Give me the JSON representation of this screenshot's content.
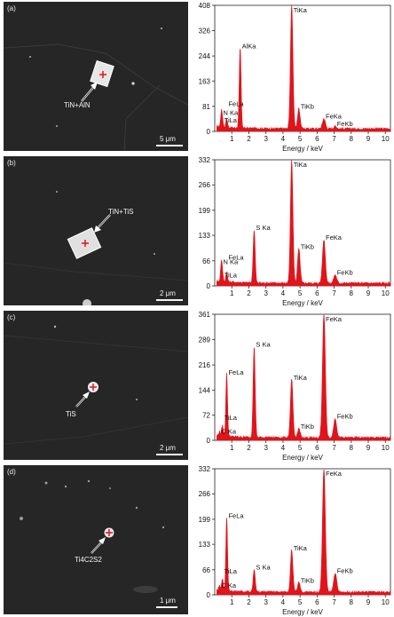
{
  "colors": {
    "spectrum": "#e0141b",
    "marker": "#e0141b",
    "sem_bg": "#262626"
  },
  "panels": [
    {
      "label": "(a)",
      "feature_label": "TiN+AlN",
      "scale_bar": "5 μm"
    },
    {
      "label": "(b)",
      "feature_label": "TiN+TiS",
      "scale_bar": "2 μm"
    },
    {
      "label": "(c)",
      "feature_label": "TiS",
      "scale_bar": "2 μm"
    },
    {
      "label": "(d)",
      "feature_label": "Ti4C2S2",
      "scale_bar": "1 μm"
    }
  ],
  "chart_data": [
    {
      "type": "line",
      "xlabel": "Energy / keV",
      "xlim": [
        0,
        10.3
      ],
      "x_ticks": [
        1,
        2,
        3,
        4,
        5,
        6,
        7,
        8,
        9,
        10
      ],
      "y_ticks": [
        0,
        81,
        163,
        244,
        326,
        408
      ],
      "ylim": [
        0,
        408
      ],
      "peaks": [
        {
          "label": "TiLa",
          "x": 0.45,
          "y": 20
        },
        {
          "label": "N Ka",
          "x": 0.39,
          "y": 45
        },
        {
          "label": "FeLa",
          "x": 0.7,
          "y": 28
        },
        {
          "label": "AlKa",
          "x": 1.49,
          "y": 260
        },
        {
          "label": "TiKa",
          "x": 4.51,
          "y": 400
        },
        {
          "label": "TiKb",
          "x": 4.93,
          "y": 65
        },
        {
          "label": "FeKa",
          "x": 6.4,
          "y": 33
        },
        {
          "label": "FeKb",
          "x": 7.06,
          "y": 8
        }
      ]
    },
    {
      "type": "line",
      "xlabel": "Energy / keV",
      "xlim": [
        0,
        10.3
      ],
      "x_ticks": [
        1,
        2,
        3,
        4,
        5,
        6,
        7,
        8,
        9,
        10
      ],
      "y_ticks": [
        0,
        66,
        133,
        199,
        266,
        332
      ],
      "ylim": [
        0,
        332
      ],
      "peaks": [
        {
          "label": "TiLa",
          "x": 0.45,
          "y": 15
        },
        {
          "label": "N Ka",
          "x": 0.39,
          "y": 50
        },
        {
          "label": "FeLa",
          "x": 0.7,
          "y": 25
        },
        {
          "label": "S Ka",
          "x": 2.31,
          "y": 140
        },
        {
          "label": "TiKa",
          "x": 4.51,
          "y": 325
        },
        {
          "label": "TiKb",
          "x": 4.93,
          "y": 90
        },
        {
          "label": "FeKa",
          "x": 6.4,
          "y": 115
        },
        {
          "label": "FeKb",
          "x": 7.06,
          "y": 22
        }
      ]
    },
    {
      "type": "line",
      "xlabel": "Energy / keV",
      "xlim": [
        0,
        10.3
      ],
      "x_ticks": [
        1,
        2,
        3,
        4,
        5,
        6,
        7,
        8,
        9,
        10
      ],
      "y_ticks": [
        0,
        72,
        144,
        216,
        289,
        361
      ],
      "ylim": [
        0,
        361
      ],
      "peaks": [
        {
          "label": "C Ka",
          "x": 0.28,
          "y": 12
        },
        {
          "label": "TiLa",
          "x": 0.45,
          "y": 30
        },
        {
          "label": "FeLa",
          "x": 0.7,
          "y": 180
        },
        {
          "label": "S Ka",
          "x": 2.31,
          "y": 260
        },
        {
          "label": "TiKa",
          "x": 4.51,
          "y": 165
        },
        {
          "label": "TiKb",
          "x": 4.93,
          "y": 25
        },
        {
          "label": "FeKa",
          "x": 6.4,
          "y": 355
        },
        {
          "label": "FeKb",
          "x": 7.06,
          "y": 55
        }
      ]
    },
    {
      "type": "line",
      "xlabel": "Energy / keV",
      "xlim": [
        0,
        10.3
      ],
      "x_ticks": [
        1,
        2,
        3,
        4,
        5,
        6,
        7,
        8,
        9,
        10
      ],
      "y_ticks": [
        0,
        66,
        133,
        199,
        266,
        332
      ],
      "ylim": [
        0,
        332
      ],
      "peaks": [
        {
          "label": "C Ka",
          "x": 0.28,
          "y": 12
        },
        {
          "label": "TiLa",
          "x": 0.45,
          "y": 30
        },
        {
          "label": "FeLa",
          "x": 0.7,
          "y": 195
        },
        {
          "label": "S Ka",
          "x": 2.31,
          "y": 60
        },
        {
          "label": "TiKa",
          "x": 4.51,
          "y": 110
        },
        {
          "label": "TiKb",
          "x": 4.93,
          "y": 25
        },
        {
          "label": "FeKa",
          "x": 6.4,
          "y": 325
        },
        {
          "label": "FeKb",
          "x": 7.06,
          "y": 50
        }
      ]
    }
  ]
}
